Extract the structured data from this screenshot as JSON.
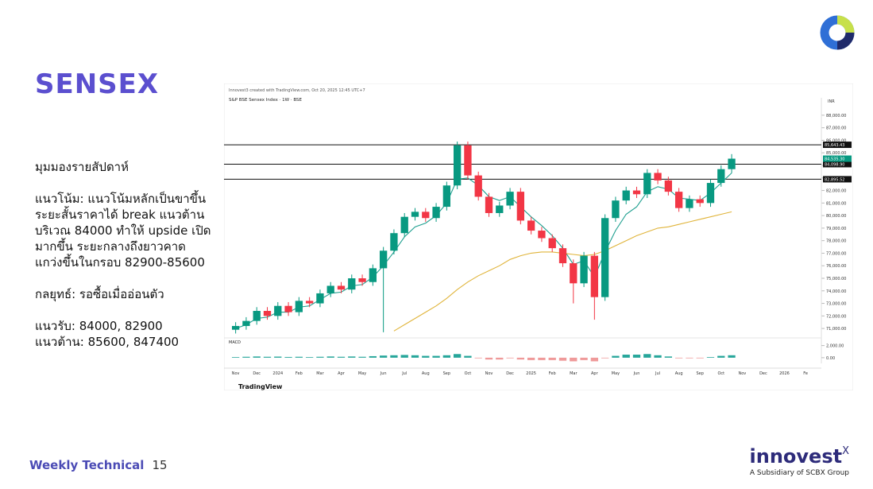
{
  "slide": {
    "title": "SENSEX",
    "body": [
      "มุมมองรายสัปดาห์",
      null,
      "แนวโน้ม: แนวโน้มหลักเป็นขาขึ้น",
      "ระยะสั้นราคาได้ break แนวต้าน",
      "บริเวณ 84000 ทำให้ upside เปิด",
      "มากขึ้น ระยะกลางถึงยาวคาด",
      "แกว่งขึ้นในกรอบ 82900-85600",
      null,
      "กลยุทธ์: รอซื้อเมื่ออ่อนตัว",
      null,
      "แนวรับ: 84000, 82900",
      "แนวต้าน: 85600, 847400"
    ],
    "footer": {
      "label": "Weekly Technical",
      "page": 15
    },
    "brand": {
      "name": "innovest",
      "mark": "X",
      "tagline": "A Subsidiary of SCBX Group"
    }
  },
  "chart_data": {
    "type": "candlestick",
    "credit": "Innovest3 created with TradingView.com, Oct 20, 2025 12:45 UTC+7",
    "header": "S&P BSE Sensex Index · 1W · BSE",
    "currency": "INR",
    "watermark": "TradingView",
    "categories": [
      "Nov",
      null,
      "Dec",
      null,
      "2024",
      null,
      "Feb",
      null,
      "Mar",
      null,
      "Apr",
      null,
      "May",
      null,
      "Jun",
      null,
      "Jul",
      null,
      "Aug",
      null,
      "Sep",
      null,
      "Oct",
      null,
      "Nov",
      null,
      "Dec",
      null,
      "2025",
      null,
      "Feb",
      null,
      "Mar",
      null,
      "Apr",
      null,
      "May",
      null,
      "Jun",
      null,
      "Jul",
      null,
      "Aug",
      null,
      "Sep",
      null,
      "Oct",
      null,
      "Nov",
      null,
      "Dec",
      null,
      "2026",
      null,
      "Fe",
      null
    ],
    "open": [
      70900,
      71200,
      71600,
      72400,
      72000,
      72800,
      72300,
      73200,
      73000,
      73800,
      74400,
      74100,
      75000,
      74700,
      75800,
      77200,
      78600,
      79900,
      80300,
      79800,
      80700,
      82400,
      85600,
      83200,
      81500,
      80200,
      80800,
      81900,
      79600,
      78800,
      78200,
      77400,
      76200,
      74600,
      76800,
      73500,
      79800,
      81200,
      82000,
      81700,
      83400,
      82800,
      81900,
      80600,
      81300,
      81000,
      82600,
      83700,
      null,
      null,
      null,
      null,
      null,
      null,
      null,
      null
    ],
    "high": [
      71500,
      71900,
      72700,
      72700,
      73100,
      73100,
      73500,
      73500,
      74100,
      74700,
      74700,
      75300,
      75300,
      76100,
      77500,
      78900,
      80200,
      80600,
      80600,
      81000,
      82700,
      85900,
      85900,
      83500,
      81800,
      81100,
      82200,
      82200,
      79900,
      79100,
      78500,
      77700,
      76500,
      77100,
      77100,
      80100,
      81500,
      82300,
      82300,
      83700,
      83700,
      83100,
      82200,
      81600,
      81600,
      82900,
      84000,
      84900,
      null,
      null,
      null,
      null,
      null,
      null,
      null,
      null
    ],
    "low": [
      70600,
      70900,
      71300,
      71700,
      71700,
      72000,
      72000,
      72700,
      72700,
      73500,
      73800,
      73800,
      74400,
      74400,
      70700,
      76900,
      78300,
      79600,
      79500,
      79500,
      80400,
      82100,
      82900,
      81200,
      79900,
      79900,
      80500,
      79300,
      78500,
      77900,
      77100,
      75900,
      73000,
      74300,
      71700,
      73200,
      79500,
      80900,
      81400,
      81400,
      82500,
      81600,
      80300,
      80300,
      80700,
      80700,
      82300,
      83400,
      null,
      null,
      null,
      null,
      null,
      null,
      null,
      null
    ],
    "close": [
      71200,
      71600,
      72400,
      72000,
      72800,
      72300,
      73200,
      73000,
      73800,
      74400,
      74100,
      75000,
      74700,
      75800,
      77200,
      78600,
      79900,
      80300,
      79800,
      80700,
      82400,
      85600,
      83200,
      81500,
      80200,
      80800,
      81900,
      79600,
      78800,
      78200,
      77400,
      76200,
      74600,
      76800,
      73500,
      79800,
      81200,
      82000,
      81700,
      83400,
      82800,
      81900,
      80600,
      81300,
      81000,
      82600,
      83700,
      84535.3,
      null,
      null,
      null,
      null,
      null,
      null,
      null,
      null
    ],
    "close_label": "84,535.30",
    "up_color": "#089981",
    "down_color": "#f23645",
    "series": [
      {
        "name": "EMA",
        "color": "#1e9f8f",
        "values": [
          71000,
          71300,
          71800,
          71900,
          72300,
          72300,
          72700,
          72800,
          73300,
          73800,
          73900,
          74400,
          74500,
          75100,
          76000,
          77100,
          78300,
          79100,
          79400,
          80000,
          81000,
          82900,
          83000,
          82400,
          81500,
          81200,
          81500,
          80700,
          79900,
          79200,
          78400,
          77400,
          76100,
          76400,
          75100,
          77100,
          78800,
          80100,
          80700,
          81900,
          82300,
          82100,
          81400,
          81300,
          81200,
          81800,
          82600,
          83400,
          null,
          null,
          null,
          null,
          null,
          null,
          null,
          null
        ]
      },
      {
        "name": "EMA",
        "color": "#e0b43a",
        "values": [
          null,
          null,
          null,
          null,
          null,
          null,
          null,
          null,
          null,
          null,
          null,
          null,
          null,
          null,
          null,
          70800,
          71300,
          71800,
          72300,
          72800,
          73400,
          74100,
          74700,
          75200,
          75600,
          76000,
          76500,
          76800,
          77000,
          77100,
          77100,
          77000,
          76900,
          76800,
          76900,
          77200,
          77600,
          78000,
          78400,
          78700,
          79000,
          79100,
          79300,
          79500,
          79700,
          79900,
          80100,
          80300,
          null,
          null,
          null,
          null,
          null,
          null,
          null,
          null
        ]
      }
    ],
    "levels": [
      {
        "value": 85643.43,
        "label": "85,643.43"
      },
      {
        "value": 84098.9,
        "label": "84,098.90"
      },
      {
        "value": 82895.52,
        "label": "82,895.52"
      }
    ],
    "ylim": [
      70500,
      88500
    ],
    "yticks": [
      {
        "value": 71000,
        "label": "71,000.00"
      },
      {
        "value": 72000,
        "label": "72,000.00"
      },
      {
        "value": 73000,
        "label": "73,000.00"
      },
      {
        "value": 74000,
        "label": "74,000.00"
      },
      {
        "value": 75000,
        "label": "75,000.00"
      },
      {
        "value": 76000,
        "label": "76,000.00"
      },
      {
        "value": 77000,
        "label": "77,000.00"
      },
      {
        "value": 78000,
        "label": "78,000.00"
      },
      {
        "value": 79000,
        "label": "79,000.00"
      },
      {
        "value": 80000,
        "label": "80,000.00"
      },
      {
        "value": 81000,
        "label": "81,000.00"
      },
      {
        "value": 82000,
        "label": "82,000.00"
      },
      {
        "value": 83000,
        "label": "83,000.00"
      },
      {
        "value": 84000,
        "label": "84,000.00"
      },
      {
        "value": 85000,
        "label": "85,000.00"
      },
      {
        "value": 86000,
        "label": "86,000.00"
      },
      {
        "value": 87000,
        "label": "87,000.00"
      },
      {
        "value": 88000,
        "label": "88,000.00"
      }
    ],
    "macd": {
      "name": "MACD",
      "values": [
        100,
        150,
        200,
        150,
        180,
        120,
        150,
        100,
        150,
        200,
        150,
        200,
        150,
        250,
        350,
        400,
        450,
        400,
        300,
        300,
        400,
        600,
        300,
        -100,
        -300,
        -300,
        -100,
        -300,
        -400,
        -400,
        -400,
        -500,
        -600,
        -400,
        -600,
        -100,
        300,
        500,
        500,
        600,
        400,
        200,
        -100,
        -100,
        -100,
        100,
        300,
        400,
        null,
        null,
        null,
        null,
        null,
        null,
        null,
        null
      ],
      "ylim": [
        -1200,
        3000
      ],
      "yticks": [
        {
          "value": 0,
          "label": "0.00"
        },
        {
          "value": 2000,
          "label": "2,000.00"
        }
      ]
    }
  }
}
